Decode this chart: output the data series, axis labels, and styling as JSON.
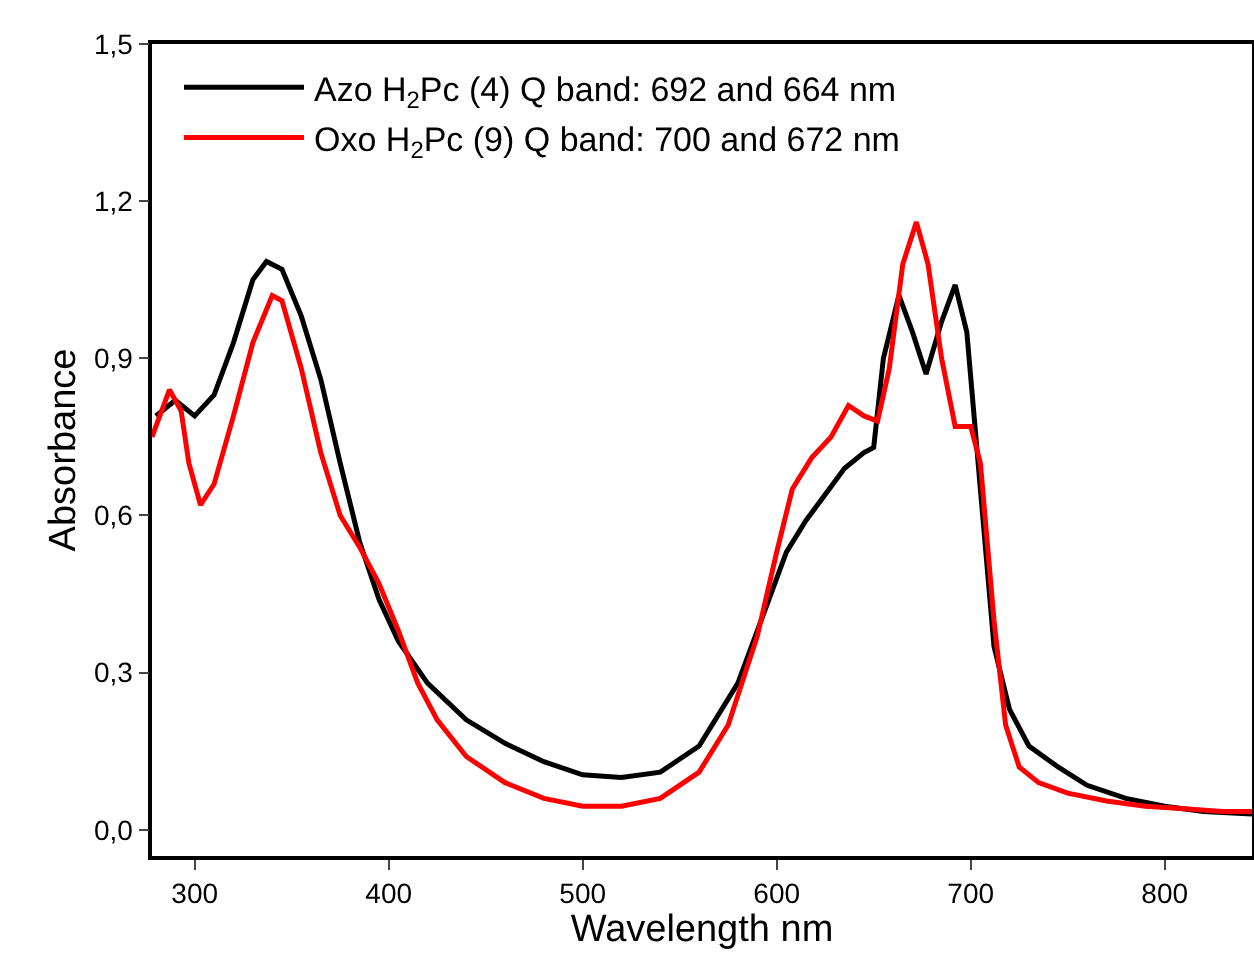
{
  "chart_data": {
    "type": "line",
    "xlabel": "Wavelength nm",
    "ylabel": "Absorbance",
    "xlim": [
      278,
      845
    ],
    "ylim": [
      -0.05,
      1.5
    ],
    "xticks": [
      300,
      400,
      500,
      600,
      700,
      800
    ],
    "yticks": [
      {
        "value": 0,
        "label": "0,0"
      },
      {
        "value": 0.3,
        "label": "0,3"
      },
      {
        "value": 0.6,
        "label": "0,6"
      },
      {
        "value": 0.9,
        "label": "0,9"
      },
      {
        "value": 1.2,
        "label": "1,2"
      },
      {
        "value": 1.5,
        "label": "1,5"
      }
    ],
    "grid": false,
    "legend": "top left",
    "marker": "none",
    "line_style": "solid",
    "series": [
      {
        "name": "Azo H$_{2}$Pc (4) Q band: 692 and 664 nm",
        "color": "#000000",
        "x": [
          280,
          290,
          300,
          310,
          320,
          330,
          337,
          345,
          355,
          365,
          375,
          385,
          395,
          405,
          420,
          440,
          460,
          480,
          500,
          520,
          540,
          560,
          580,
          595,
          605,
          615,
          625,
          635,
          645,
          650,
          655,
          663,
          670,
          677,
          685,
          692,
          698,
          705,
          712,
          720,
          730,
          745,
          760,
          780,
          800,
          820,
          845
        ],
        "values": [
          0.79,
          0.82,
          0.79,
          0.83,
          0.93,
          1.05,
          1.085,
          1.07,
          0.98,
          0.86,
          0.7,
          0.55,
          0.44,
          0.36,
          0.28,
          0.21,
          0.165,
          0.13,
          0.105,
          0.1,
          0.11,
          0.16,
          0.28,
          0.43,
          0.53,
          0.59,
          0.64,
          0.69,
          0.72,
          0.73,
          0.9,
          1.02,
          0.95,
          0.87,
          0.97,
          1.04,
          0.95,
          0.65,
          0.35,
          0.23,
          0.16,
          0.12,
          0.085,
          0.06,
          0.045,
          0.035,
          0.03
        ]
      },
      {
        "name": "Oxo H$_{2}$Pc (9) Q band: 700 and 672 nm",
        "color": "#ff0000",
        "x": [
          278,
          287,
          293,
          297,
          303,
          310,
          320,
          330,
          340,
          345,
          355,
          365,
          375,
          385,
          395,
          405,
          415,
          425,
          440,
          460,
          480,
          500,
          520,
          540,
          560,
          575,
          590,
          600,
          608,
          618,
          628,
          637,
          645,
          652,
          658,
          665,
          672,
          678,
          685,
          692,
          700,
          705,
          712,
          718,
          725,
          735,
          750,
          770,
          790,
          810,
          830,
          845
        ],
        "values": [
          0.75,
          0.84,
          0.8,
          0.7,
          0.62,
          0.66,
          0.79,
          0.93,
          1.02,
          1.01,
          0.88,
          0.72,
          0.6,
          0.54,
          0.47,
          0.38,
          0.28,
          0.21,
          0.14,
          0.09,
          0.06,
          0.045,
          0.045,
          0.06,
          0.11,
          0.2,
          0.37,
          0.53,
          0.65,
          0.71,
          0.75,
          0.81,
          0.79,
          0.78,
          0.88,
          1.08,
          1.16,
          1.08,
          0.9,
          0.77,
          0.77,
          0.7,
          0.4,
          0.2,
          0.12,
          0.09,
          0.07,
          0.055,
          0.045,
          0.04,
          0.035,
          0.035
        ]
      }
    ]
  }
}
